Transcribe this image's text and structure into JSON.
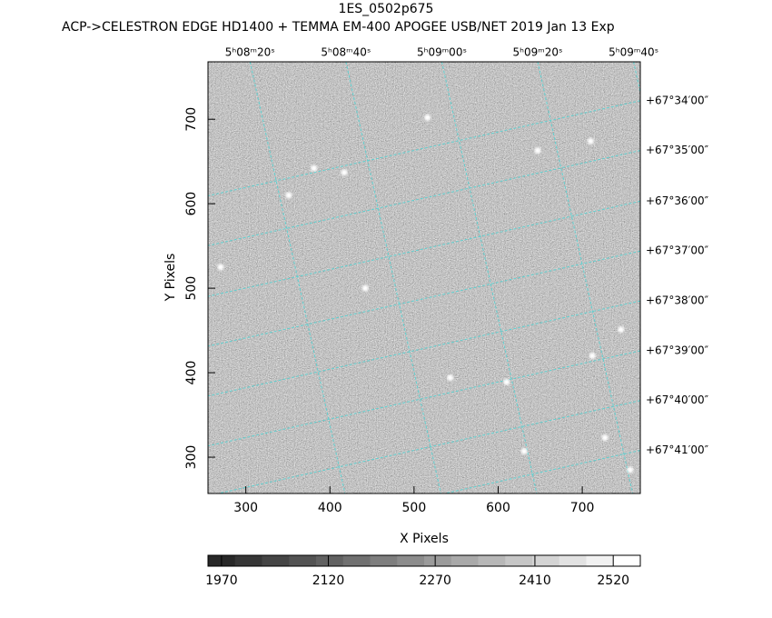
{
  "chart_data": {
    "type": "image",
    "title": "1ES_0502p675",
    "subtitle": "ACP->CELESTRON EDGE HD1400 + TEMMA EM-400 APOGEE USB/NET   2019 Jan 13    Exp",
    "xlabel": "X Pixels",
    "ylabel": "Y Pixels",
    "xlim": [
      255,
      769
    ],
    "ylim": [
      257,
      768
    ],
    "xticks": [
      300,
      400,
      500,
      600,
      700
    ],
    "yticks": [
      300,
      400,
      500,
      600,
      700
    ],
    "ra_ticks": [
      {
        "value": 305,
        "label": "5ʰ08ᵐ20ˢ"
      },
      {
        "value": 419,
        "label": "5ʰ08ᵐ40ˢ"
      },
      {
        "value": 533,
        "label": "5ʰ09ᵐ00ˢ"
      },
      {
        "value": 647,
        "label": "5ʰ09ᵐ20ˢ"
      },
      {
        "value": 761,
        "label": "5ʰ09ᵐ40ˢ"
      }
    ],
    "dec_ticks": [
      {
        "value": 722,
        "label": "+67°34′00″"
      },
      {
        "value": 663,
        "label": "+67°35′00″"
      },
      {
        "value": 603,
        "label": "+67°36′00″"
      },
      {
        "value": 544,
        "label": "+67°37′00″"
      },
      {
        "value": 485,
        "label": "+67°38′00″"
      },
      {
        "value": 426,
        "label": "+67°39′00″"
      },
      {
        "value": 367,
        "label": "+67°40′00″"
      },
      {
        "value": 308,
        "label": "+67°41′00″"
      }
    ],
    "grid_color": "#5fd0d0",
    "clim": [
      1951,
      2558
    ],
    "cticks": [
      1970,
      2120,
      2270,
      2410,
      2520
    ],
    "sources": {
      "x": [
        516,
        351,
        610,
        757,
        746,
        712,
        442,
        543,
        710,
        647,
        381,
        417,
        270,
        727,
        631
      ],
      "y": [
        702,
        610,
        389,
        285,
        451,
        420,
        500,
        394,
        674,
        663,
        642,
        637,
        525,
        323,
        307
      ]
    }
  }
}
